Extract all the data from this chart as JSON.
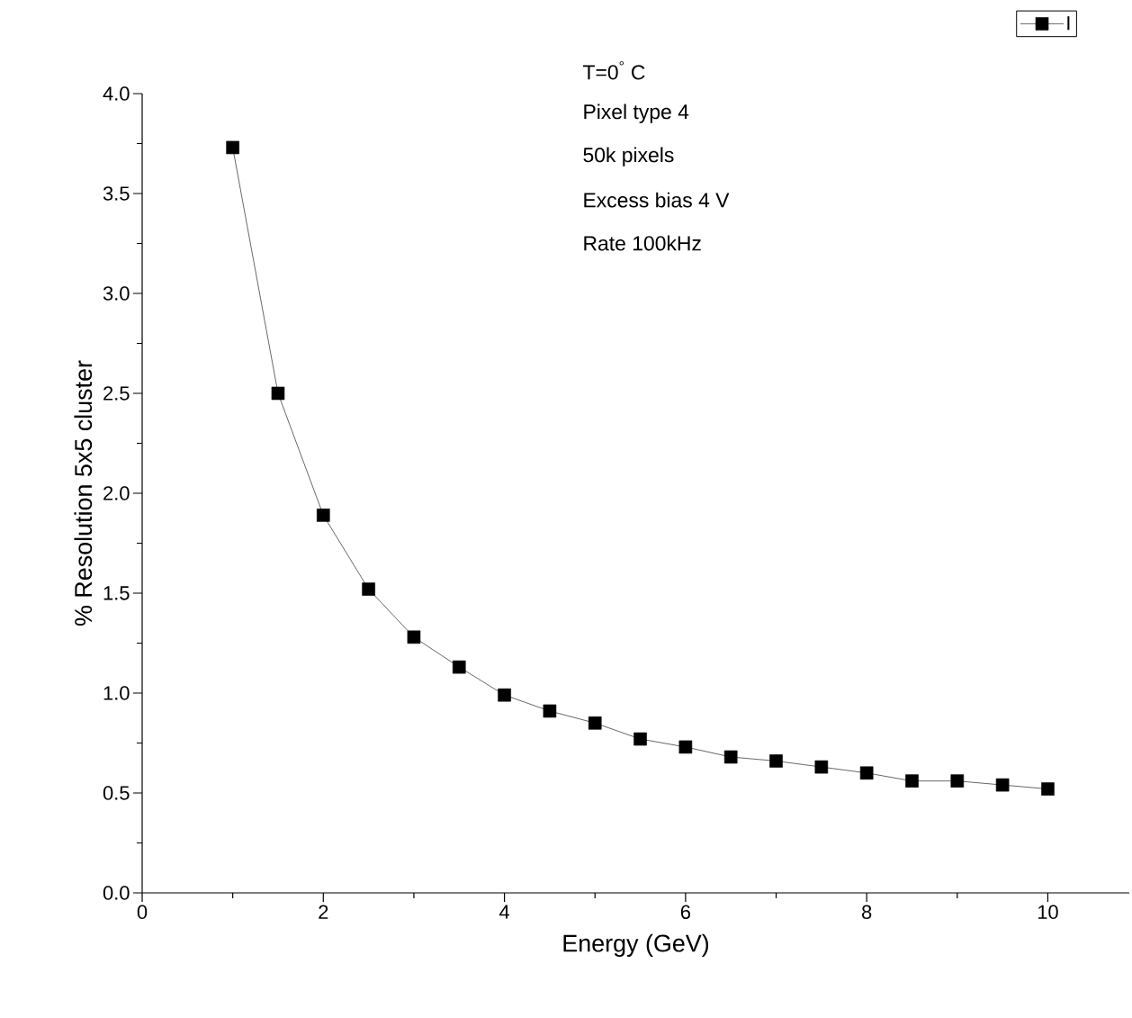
{
  "chart_data": {
    "type": "line",
    "xlabel": "Energy (GeV)",
    "ylabel": "% Resolution 5x5 cluster",
    "annotations": [
      "T=0$^{°}$ C",
      "Pixel type 4",
      "50k pixels",
      "Excess bias 4 V",
      "Rate 100kHz"
    ],
    "x": [
      1,
      1.5,
      2,
      2.5,
      3,
      3.5,
      4,
      4.5,
      5,
      5.5,
      6,
      6.5,
      7,
      7.5,
      8,
      8.5,
      9,
      9.5,
      10
    ],
    "series": [
      {
        "name": "I",
        "color": "#000000",
        "values": [
          3.73,
          2.5,
          1.89,
          1.52,
          1.28,
          1.13,
          0.99,
          0.91,
          0.85,
          0.77,
          0.73,
          0.68,
          0.66,
          0.63,
          0.6,
          0.56,
          0.56,
          0.54,
          0.52
        ]
      }
    ],
    "xlim": [
      0,
      10.9
    ],
    "ylim": [
      0,
      4.0
    ],
    "xticks": [
      0,
      2,
      4,
      6,
      8,
      10
    ],
    "yticks": [
      {
        "value": 0,
        "label": "0.0"
      },
      {
        "value": 0.5,
        "label": "0.5"
      },
      {
        "value": 1,
        "label": "1.0"
      },
      {
        "value": 1.5,
        "label": "1.5"
      },
      {
        "value": 2,
        "label": "2.0"
      },
      {
        "value": 2.5,
        "label": "2.5"
      },
      {
        "value": 3,
        "label": "3.0"
      },
      {
        "value": 3.5,
        "label": "3.5"
      },
      {
        "value": 4,
        "label": "4.0"
      }
    ],
    "marker": "square",
    "line_style": "solid",
    "legend": "top right",
    "grid": false
  }
}
